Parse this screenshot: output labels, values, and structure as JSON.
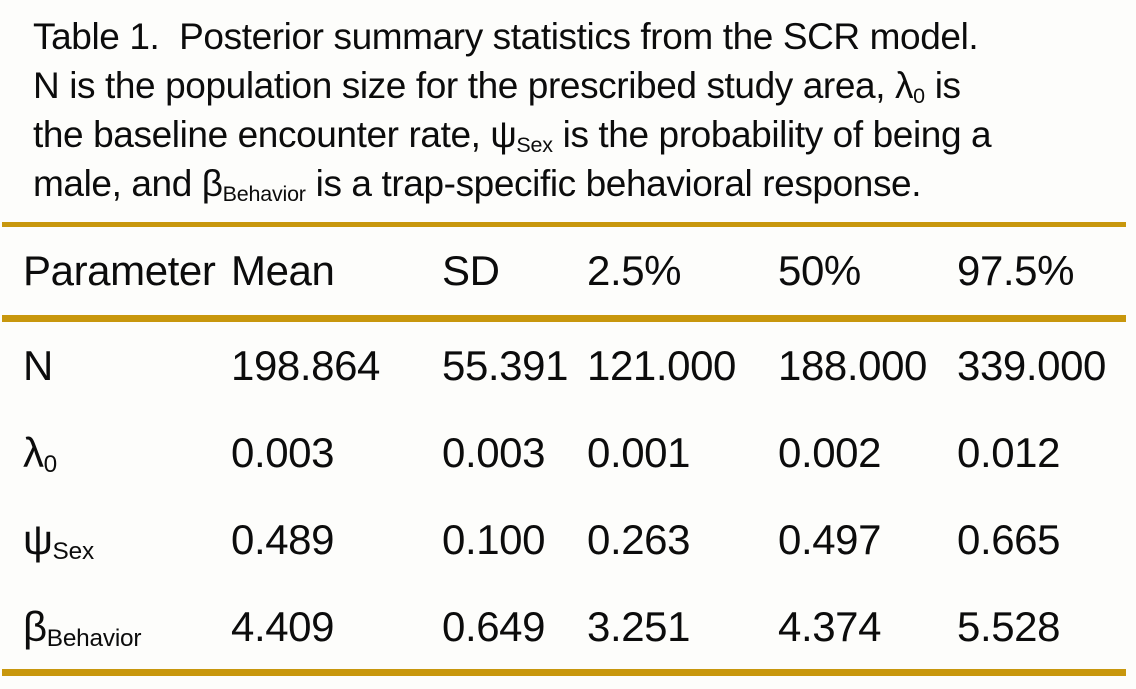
{
  "page": {
    "background": "#fdfdfb",
    "text_color": "#0c0c0c",
    "rule_color": "#C8970D"
  },
  "table": {
    "caption_lines": [
      [
        {
          "text": "Table 1.  Posterior summary statistics from the SCR model."
        }
      ],
      [
        {
          "text": "N is the population size for the prescribed study area, "
        },
        {
          "base": "λ",
          "sub": "0"
        },
        {
          "text": " is"
        }
      ],
      [
        {
          "text": "the baseline encounter rate, "
        },
        {
          "base": "ψ",
          "sub": "Sex"
        },
        {
          "text": " is the probability of being a"
        }
      ],
      [
        {
          "text": "male, and "
        },
        {
          "base": "β",
          "sub": "Behavior"
        },
        {
          "text": " is a trap-specific behavioral response."
        }
      ]
    ],
    "columns": [
      "Parameter",
      "Mean",
      "SD",
      "2.5%",
      "50%",
      "97.5%"
    ],
    "rows": [
      {
        "name": "n",
        "param": {
          "base": "N",
          "sub": ""
        },
        "values": [
          "198.864",
          "55.391",
          "121.000",
          "188.000",
          "339.000"
        ]
      },
      {
        "name": "lambda-0",
        "param": {
          "base": "λ",
          "sub": "0"
        },
        "values": [
          "0.003",
          "0.003",
          "0.001",
          "0.002",
          "0.012"
        ]
      },
      {
        "name": "psi-sex",
        "param": {
          "base": "ψ",
          "sub": "Sex"
        },
        "values": [
          "0.489",
          "0.100",
          "0.263",
          "0.497",
          "0.665"
        ]
      },
      {
        "name": "beta-behavior",
        "param": {
          "base": "β",
          "sub": "Behavior"
        },
        "values": [
          "4.409",
          "0.649",
          "3.251",
          "4.374",
          "5.528"
        ]
      }
    ]
  }
}
